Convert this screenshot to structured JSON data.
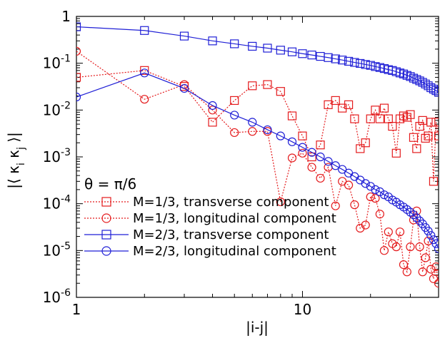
{
  "chart_data": {
    "type": "scatter",
    "xscale": "log",
    "yscale": "log",
    "xlim": [
      1,
      40
    ],
    "ylim": [
      1e-06,
      1
    ],
    "xlabel": "|i-j|",
    "ylabel": "|⟨ κi κj ⟩|",
    "x_ticks": [
      {
        "value": 1,
        "label": "1"
      },
      {
        "value": 10,
        "label": "10"
      }
    ],
    "y_ticks": [
      {
        "value": 1e-06,
        "base": "10",
        "exp": "-6"
      },
      {
        "value": 1e-05,
        "base": "10",
        "exp": "-5"
      },
      {
        "value": 0.0001,
        "base": "10",
        "exp": "-4"
      },
      {
        "value": 0.001,
        "base": "10",
        "exp": "-3"
      },
      {
        "value": 0.01,
        "base": "10",
        "exp": "-2"
      },
      {
        "value": 0.1,
        "base": "10",
        "exp": "-1"
      },
      {
        "value": 1,
        "base": "1",
        "exp": ""
      }
    ],
    "legend_title": "θ = π/6",
    "legend_position": "bottom-left",
    "grid": false,
    "series": [
      {
        "name": "M=1/3, transverse component",
        "color": "#e41a1c",
        "marker": "square",
        "line": "dotted",
        "points": [
          [
            1,
            0.05
          ],
          [
            2,
            0.07
          ],
          [
            3,
            0.032
          ],
          [
            4,
            0.0055
          ],
          [
            5,
            0.016
          ],
          [
            6,
            0.033
          ],
          [
            7,
            0.035
          ],
          [
            8,
            0.025
          ],
          [
            9,
            0.0075
          ],
          [
            10,
            0.0028
          ],
          [
            11,
            0.001
          ],
          [
            12,
            0.0018
          ],
          [
            13,
            0.013
          ],
          [
            14,
            0.016
          ],
          [
            15,
            0.011
          ],
          [
            16,
            0.013
          ],
          [
            17,
            0.0065
          ],
          [
            18,
            0.0015
          ],
          [
            19,
            0.002
          ],
          [
            20,
            0.0065
          ],
          [
            21,
            0.01
          ],
          [
            22,
            0.0065
          ],
          [
            23,
            0.011
          ],
          [
            24,
            0.0065
          ],
          [
            25,
            0.0045
          ],
          [
            26,
            0.0012
          ],
          [
            27,
            0.0065
          ],
          [
            28,
            0.0075
          ],
          [
            29,
            0.007
          ],
          [
            30,
            0.008
          ],
          [
            31,
            0.0026
          ],
          [
            32,
            0.0015
          ],
          [
            33,
            0.0045
          ],
          [
            34,
            0.006
          ],
          [
            35,
            0.0025
          ],
          [
            36,
            0.0028
          ],
          [
            37,
            0.0055
          ],
          [
            38,
            0.0003
          ],
          [
            39,
            0.0055
          ],
          [
            40,
            0.0028
          ]
        ]
      },
      {
        "name": "M=1/3, longitudinal component",
        "color": "#e41a1c",
        "marker": "circle",
        "line": "dotted",
        "points": [
          [
            1,
            0.18
          ],
          [
            2,
            0.017
          ],
          [
            3,
            0.035
          ],
          [
            4,
            0.01
          ],
          [
            5,
            0.0033
          ],
          [
            6,
            0.0035
          ],
          [
            7,
            0.0035
          ],
          [
            8,
            0.00011
          ],
          [
            9,
            0.00095
          ],
          [
            10,
            0.0012
          ],
          [
            11,
            0.0006
          ],
          [
            12,
            0.00035
          ],
          [
            13,
            0.0006
          ],
          [
            14,
            9e-05
          ],
          [
            15,
            0.0003
          ],
          [
            16,
            0.00025
          ],
          [
            17,
            9.5e-05
          ],
          [
            18,
            3e-05
          ],
          [
            19,
            3.5e-05
          ],
          [
            20,
            0.00014
          ],
          [
            21,
            0.00013
          ],
          [
            22,
            6e-05
          ],
          [
            23,
            1e-05
          ],
          [
            24,
            2.5e-05
          ],
          [
            25,
            1.4e-05
          ],
          [
            26,
            1.2e-05
          ],
          [
            27,
            2.5e-05
          ],
          [
            28,
            5e-06
          ],
          [
            29,
            3.5e-06
          ],
          [
            30,
            1.2e-05
          ],
          [
            31,
            4.5e-05
          ],
          [
            32,
            7e-05
          ],
          [
            33,
            1.2e-05
          ],
          [
            34,
            3.5e-06
          ],
          [
            35,
            7e-06
          ],
          [
            36,
            1.6e-05
          ],
          [
            37,
            4e-06
          ],
          [
            38,
            2.5e-06
          ],
          [
            39,
            4.5e-06
          ],
          [
            40,
            2e-06
          ]
        ]
      },
      {
        "name": "M=2/3, transverse component",
        "color": "#1f1fd6",
        "marker": "square",
        "line": "solid",
        "points": [
          [
            1,
            0.6
          ],
          [
            2,
            0.5
          ],
          [
            3,
            0.38
          ],
          [
            4,
            0.3
          ],
          [
            5,
            0.26
          ],
          [
            6,
            0.23
          ],
          [
            7,
            0.21
          ],
          [
            8,
            0.19
          ],
          [
            9,
            0.175
          ],
          [
            10,
            0.16
          ],
          [
            11,
            0.15
          ],
          [
            12,
            0.14
          ],
          [
            13,
            0.132
          ],
          [
            14,
            0.124
          ],
          [
            15,
            0.117
          ],
          [
            16,
            0.11
          ],
          [
            17,
            0.104
          ],
          [
            18,
            0.099
          ],
          [
            19,
            0.094
          ],
          [
            20,
            0.09
          ],
          [
            21,
            0.085
          ],
          [
            22,
            0.081
          ],
          [
            23,
            0.077
          ],
          [
            24,
            0.073
          ],
          [
            25,
            0.07
          ],
          [
            26,
            0.066
          ],
          [
            27,
            0.062
          ],
          [
            28,
            0.059
          ],
          [
            29,
            0.055
          ],
          [
            30,
            0.052
          ],
          [
            31,
            0.048
          ],
          [
            32,
            0.045
          ],
          [
            33,
            0.042
          ],
          [
            34,
            0.039
          ],
          [
            35,
            0.036
          ],
          [
            36,
            0.033
          ],
          [
            37,
            0.03
          ],
          [
            38,
            0.028
          ],
          [
            39,
            0.026
          ],
          [
            40,
            0.024
          ]
        ]
      },
      {
        "name": "M=2/3, longitudinal component",
        "color": "#1f1fd6",
        "marker": "circle",
        "line": "solid",
        "points": [
          [
            1,
            0.019
          ],
          [
            2,
            0.062
          ],
          [
            3,
            0.029
          ],
          [
            4,
            0.0125
          ],
          [
            5,
            0.0078
          ],
          [
            6,
            0.0055
          ],
          [
            7,
            0.0038
          ],
          [
            8,
            0.0028
          ],
          [
            9,
            0.0021
          ],
          [
            10,
            0.0016
          ],
          [
            11,
            0.00125
          ],
          [
            12,
            0.001
          ],
          [
            13,
            0.0008
          ],
          [
            14,
            0.00065
          ],
          [
            15,
            0.00054
          ],
          [
            16,
            0.00045
          ],
          [
            17,
            0.00038
          ],
          [
            18,
            0.00032
          ],
          [
            19,
            0.00027
          ],
          [
            20,
            0.000235
          ],
          [
            21,
            0.0002
          ],
          [
            22,
            0.00018
          ],
          [
            23,
            0.000155
          ],
          [
            24,
            0.00014
          ],
          [
            25,
            0.00012
          ],
          [
            26,
            0.000108
          ],
          [
            27,
            9.5e-05
          ],
          [
            28,
            8.5e-05
          ],
          [
            29,
            7.5e-05
          ],
          [
            30,
            6.6e-05
          ],
          [
            31,
            5.8e-05
          ],
          [
            32,
            5e-05
          ],
          [
            33,
            4.3e-05
          ],
          [
            34,
            3.7e-05
          ],
          [
            35,
            3.1e-05
          ],
          [
            36,
            2.6e-05
          ],
          [
            37,
            2.1e-05
          ],
          [
            38,
            1.7e-05
          ],
          [
            39,
            1.4e-05
          ],
          [
            40,
            1.1e-05
          ]
        ]
      }
    ]
  }
}
